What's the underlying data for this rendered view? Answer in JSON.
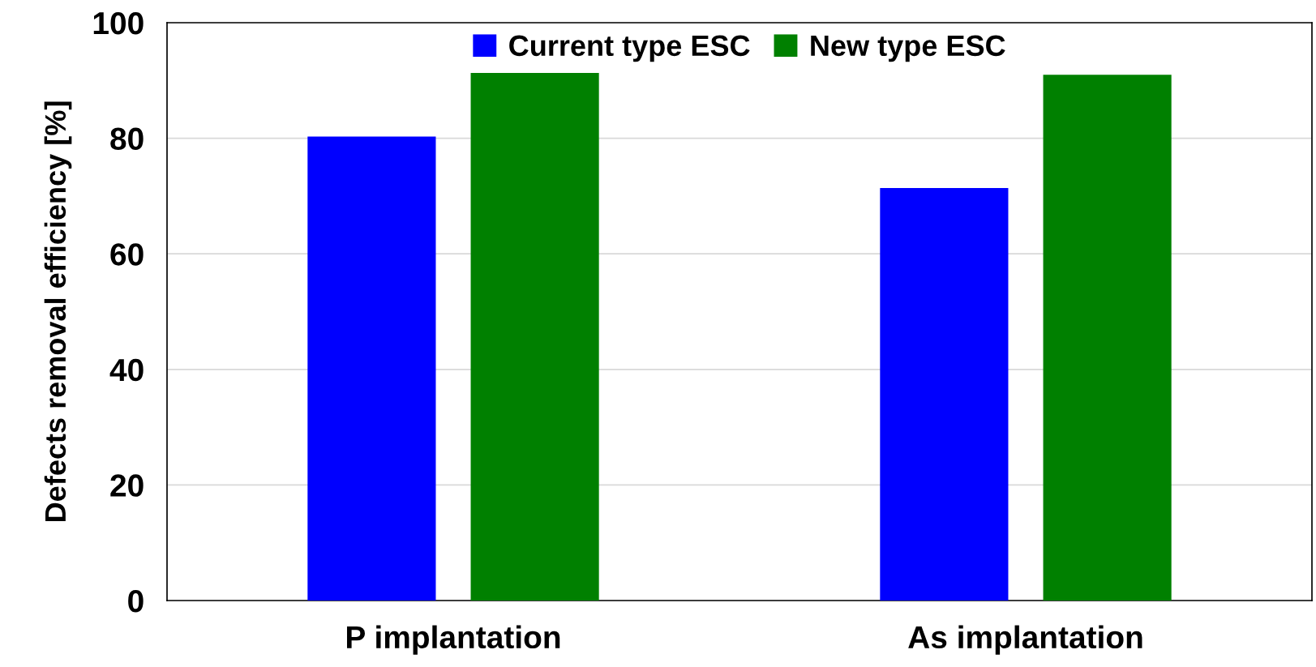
{
  "chart_data": {
    "type": "bar",
    "ylabel": "Defects removal efficiency [%]",
    "categories": [
      "P implantation",
      "As implantation"
    ],
    "series": [
      {
        "name": "Current type ESC",
        "color": "#0000ff",
        "values": [
          80.3,
          71.4
        ]
      },
      {
        "name": "New type ESC",
        "color": "#008000",
        "values": [
          91.3,
          91.0
        ]
      }
    ],
    "ylim": [
      0,
      100
    ],
    "yticks": [
      0,
      20,
      40,
      60,
      80,
      100
    ],
    "grid": "y",
    "legend": "top"
  }
}
